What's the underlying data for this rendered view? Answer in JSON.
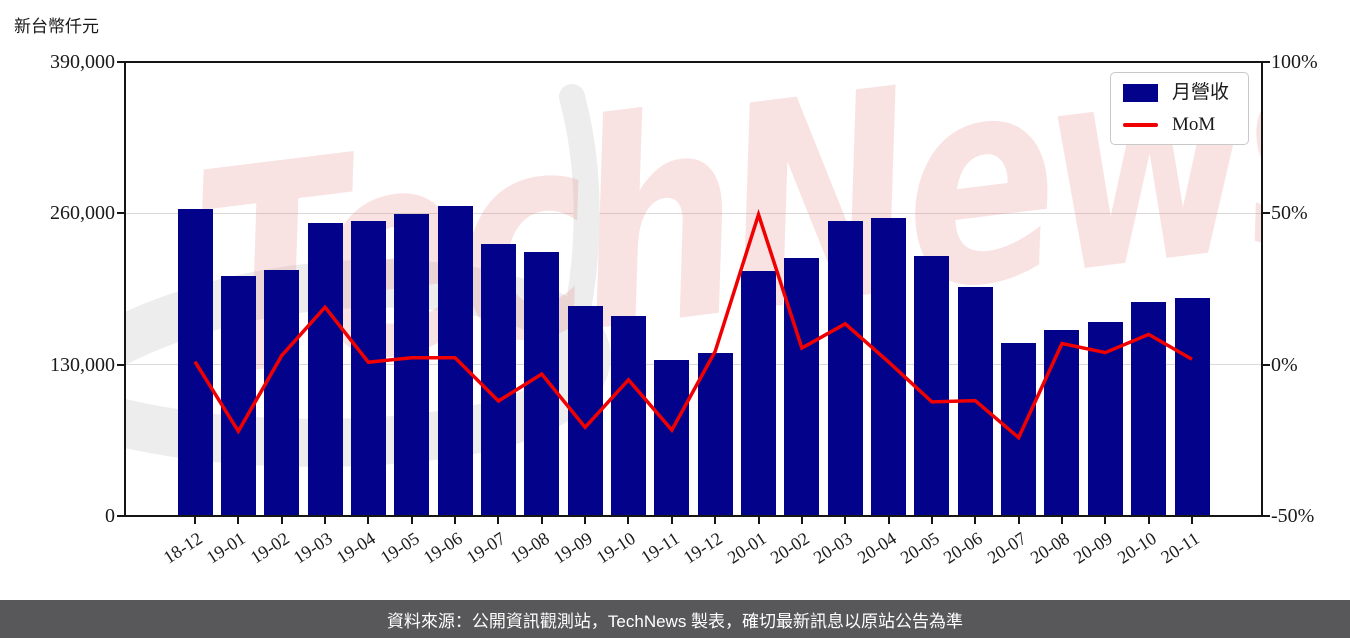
{
  "title": "新台幣仟元",
  "watermark": {
    "text": "TechNews"
  },
  "legend": {
    "items": [
      {
        "label": "月營收",
        "type": "bar"
      },
      {
        "label": "MoM",
        "type": "line"
      }
    ]
  },
  "y_axis_left": {
    "unit": "新台幣仟元",
    "tick_labels": [
      "0",
      "130,000",
      "260,000",
      "390,000"
    ],
    "tick_values": [
      0,
      130000,
      260000,
      390000
    ]
  },
  "y_axis_right": {
    "tick_labels": [
      "-50%",
      "0%",
      "50%",
      "100%"
    ],
    "tick_values": [
      -50,
      0,
      50,
      100
    ]
  },
  "footer": {
    "text": "資料來源：公開資訊觀測站，TechNews 製表，確切最新訊息以原站公告為準"
  },
  "colors": {
    "bar": "#02028a",
    "line": "#f00000",
    "grid": "#d9d9d9",
    "frame": "#151515",
    "footer_bg": "#58585a",
    "watermark_pink": "rgba(226,125,125,0.22)",
    "watermark_gray": "#ededed"
  },
  "chart_data": {
    "type": "bar+line",
    "categories": [
      "18-12",
      "19-01",
      "19-02",
      "19-03",
      "19-04",
      "19-05",
      "19-06",
      "19-07",
      "19-08",
      "19-09",
      "19-10",
      "19-11",
      "19-12",
      "20-01",
      "20-02",
      "20-03",
      "20-04",
      "20-05",
      "20-06",
      "20-07",
      "20-08",
      "20-09",
      "20-10",
      "20-11"
    ],
    "series": [
      {
        "name": "月營收",
        "chart": "bar",
        "axis": "left",
        "unit": "新台幣仟元",
        "values": [
          264000,
          206000,
          211500,
          252000,
          253500,
          259500,
          266000,
          234000,
          227000,
          180500,
          171500,
          134000,
          140000,
          210500,
          221500,
          253000,
          256000,
          223500,
          196500,
          149000,
          160000,
          166500,
          183500,
          187000
        ]
      },
      {
        "name": "MoM",
        "chart": "line",
        "axis": "right",
        "unit": "%",
        "values": [
          1.0,
          -22.0,
          3.0,
          19.0,
          0.8,
          2.3,
          2.3,
          -12.0,
          -3.1,
          -20.7,
          -5.0,
          -21.6,
          4.4,
          49.6,
          5.5,
          13.5,
          0.9,
          -12.3,
          -11.9,
          -24.1,
          7.0,
          4.0,
          10.0,
          1.8
        ]
      }
    ],
    "title": "新台幣仟元",
    "xlabel": "",
    "left_ylim": [
      0,
      390000
    ],
    "right_ylim": [
      -50,
      100
    ],
    "gridlines_left": [
      130000,
      260000
    ],
    "grid": true,
    "legend_position": "upper right"
  }
}
